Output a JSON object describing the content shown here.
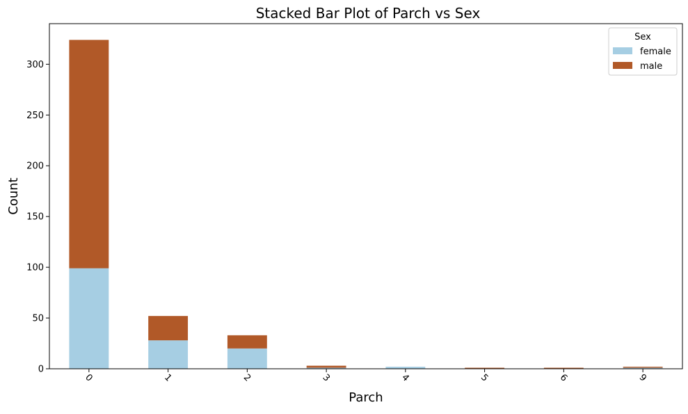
{
  "chart_data": {
    "type": "bar",
    "stacked": true,
    "title": "Stacked Bar Plot of Parch vs Sex",
    "xlabel": "Parch",
    "ylabel": "Count",
    "categories": [
      "0",
      "1",
      "2",
      "3",
      "4",
      "5",
      "6",
      "9"
    ],
    "series": [
      {
        "name": "female",
        "color": "#a6cee3",
        "values": [
          99,
          28,
          20,
          1,
          2,
          0,
          0,
          1
        ]
      },
      {
        "name": "male",
        "color": "#b15928",
        "values": [
          225,
          24,
          13,
          2,
          0,
          1,
          1,
          1
        ]
      }
    ],
    "ylim": [
      0,
      340
    ],
    "yticks": [
      0,
      50,
      100,
      150,
      200,
      250,
      300
    ],
    "xtick_rotation_deg": 45,
    "grid": false,
    "legend": {
      "title": "Sex",
      "position": "top-right"
    }
  }
}
